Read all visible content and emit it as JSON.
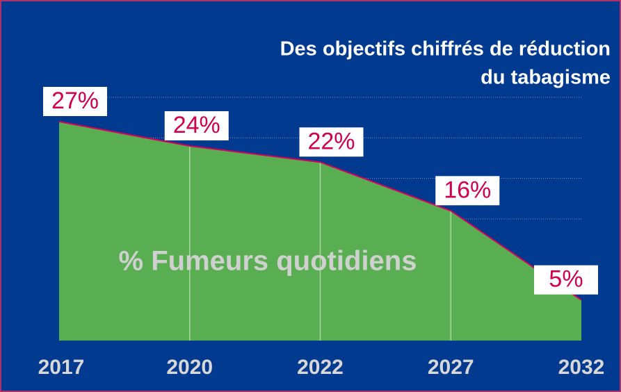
{
  "chart_data": {
    "type": "area",
    "title": [
      "Des objectifs chiffrés de réduction",
      "du tabagisme"
    ],
    "categories": [
      "2017",
      "2020",
      "2022",
      "2027",
      "2032"
    ],
    "series": [
      {
        "name": "% Fumeurs quotidiens",
        "color": "#5aae52",
        "values": [
          27,
          24,
          22,
          16,
          5
        ],
        "value_labels": [
          "27%",
          "24%",
          "22%",
          "16%",
          "5%"
        ]
      }
    ],
    "ylim": [
      0,
      30
    ],
    "yticks": [
      15,
      20,
      25,
      30
    ],
    "grid": true
  }
}
